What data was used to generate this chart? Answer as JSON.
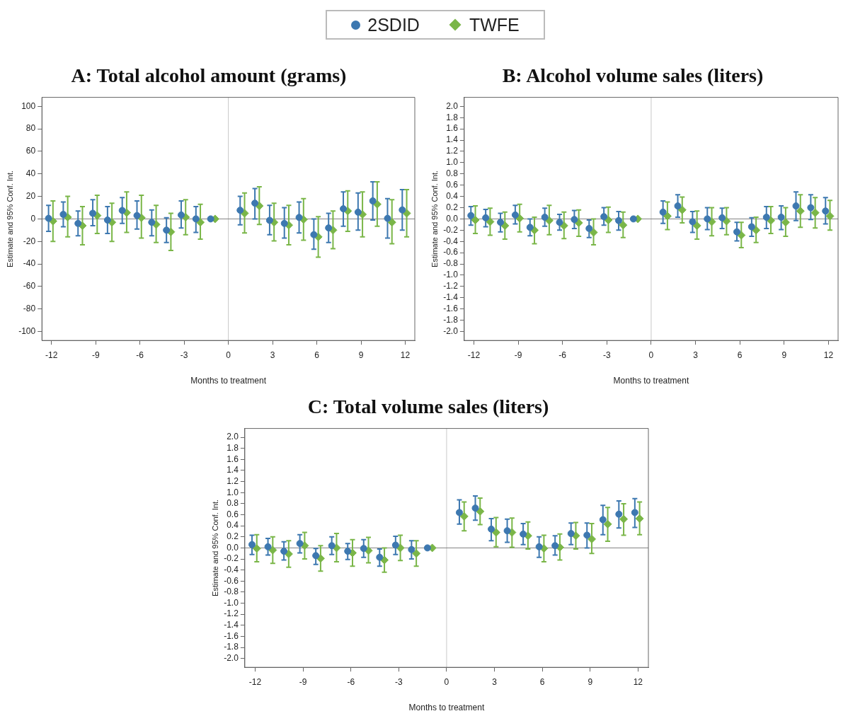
{
  "chart_data": [
    {
      "type": "scatter",
      "title": "A: Total alcohol amount (grams)",
      "xlabel": "Months to treatment",
      "ylabel": "Estimate and 95% Conf. Int.",
      "legend": "top",
      "grid": false,
      "xlim": [
        -12.65,
        12.65
      ],
      "xticks": [
        -12,
        -9,
        -6,
        -3,
        0,
        3,
        6,
        9,
        12
      ],
      "ylim": [
        -108,
        108
      ],
      "yticks": [
        -100,
        -80,
        -60,
        -40,
        -20,
        0,
        20,
        40,
        60,
        80,
        100
      ],
      "ref_lines": [
        {
          "axis": "x",
          "value": 0,
          "color": "#c8c8c8"
        },
        {
          "axis": "y",
          "value": 0,
          "color": "#808080"
        }
      ],
      "series": [
        {
          "name": "2SDID",
          "color": "#3d78b0",
          "marker": "circle",
          "x": [
            -12.2,
            -11.2,
            -10.2,
            -9.2,
            -8.2,
            -7.2,
            -6.2,
            -5.2,
            -4.2,
            -3.2,
            -2.2,
            -1.2,
            0.8,
            1.8,
            2.8,
            3.8,
            4.8,
            5.8,
            6.8,
            7.8,
            8.8,
            9.8,
            10.8,
            11.8
          ],
          "values": [
            0.5,
            4,
            -4,
            5,
            -1,
            7.5,
            3,
            -3,
            -10,
            3.5,
            0,
            0,
            7.7,
            14,
            -1.3,
            -4,
            1.3,
            -14,
            -8,
            9,
            6,
            16,
            0.5,
            8
          ],
          "errors": [
            [
              -11,
              12
            ],
            [
              -7,
              15
            ],
            [
              -15,
              7
            ],
            [
              -6,
              17
            ],
            [
              -13,
              11
            ],
            [
              -4,
              19
            ],
            [
              -9,
              16
            ],
            [
              -15,
              8
            ],
            [
              -21,
              1
            ],
            [
              -8,
              16
            ],
            [
              -12,
              11
            ],
            null,
            [
              -5.3,
              20
            ],
            [
              0,
              27
            ],
            [
              -14,
              12
            ],
            [
              -17,
              10
            ],
            [
              -12.5,
              15
            ],
            [
              -27,
              0
            ],
            [
              -21,
              5
            ],
            [
              -6.5,
              24
            ],
            [
              -10,
              23
            ],
            [
              -1,
              33
            ],
            [
              -17,
              18
            ],
            [
              -10,
              26
            ]
          ]
        },
        {
          "name": "TWFE",
          "color": "#7ab648",
          "marker": "diamond",
          "x": [
            -11.9,
            -10.9,
            -9.9,
            -8.9,
            -7.9,
            -6.9,
            -5.9,
            -4.9,
            -3.9,
            -2.9,
            -1.9,
            -0.9,
            1.1,
            2.1,
            3.1,
            4.1,
            5.1,
            6.1,
            7.1,
            8.1,
            9.1,
            10.1,
            11.1,
            12.1
          ],
          "values": [
            -2,
            1.5,
            -6,
            3,
            -3,
            5.5,
            1,
            -5,
            -11.5,
            1.5,
            -3,
            0,
            5,
            11.5,
            -3,
            -5.5,
            -0.5,
            -16,
            -10,
            7,
            4,
            13,
            -3,
            5
          ],
          "errors": [
            [
              -20,
              16
            ],
            [
              -16,
              20
            ],
            [
              -23,
              11
            ],
            [
              -13,
              21
            ],
            [
              -20,
              14
            ],
            [
              -12,
              24
            ],
            [
              -17,
              21
            ],
            [
              -21,
              12
            ],
            [
              -28,
              5
            ],
            [
              -14,
              17
            ],
            [
              -18,
              13
            ],
            null,
            [
              -12.5,
              23
            ],
            [
              -5,
              28.5
            ],
            [
              -19.5,
              14
            ],
            [
              -23,
              12
            ],
            [
              -19,
              18
            ],
            [
              -34,
              2
            ],
            [
              -26.5,
              7
            ],
            [
              -11,
              25
            ],
            [
              -16,
              24
            ],
            [
              -6.5,
              33
            ],
            [
              -22,
              17
            ],
            [
              -16,
              26
            ]
          ]
        }
      ]
    },
    {
      "type": "scatter",
      "title": "B: Alcohol volume sales (liters)",
      "xlabel": "Months to treatment",
      "ylabel": "Estimate and 95% Conf. Int.",
      "grid": false,
      "xlim": [
        -12.65,
        12.65
      ],
      "xticks": [
        -12,
        -9,
        -6,
        -3,
        0,
        3,
        6,
        9,
        12
      ],
      "ylim": [
        -2.16,
        2.16
      ],
      "yticks": [
        {
          "value": -2,
          "label": "-2.0"
        },
        -1.8,
        -1.6,
        -1.4,
        -1.2,
        {
          "value": -1,
          "label": "-1.0"
        },
        -0.8,
        -0.6,
        -0.4,
        -0.2,
        {
          "value": 0,
          "label": "0.0"
        },
        0.2,
        0.4,
        0.6,
        0.8,
        {
          "value": 1,
          "label": "1.0"
        },
        1.2,
        1.4,
        1.6,
        1.8,
        {
          "value": 2,
          "label": "2.0"
        }
      ],
      "ref_lines": [
        {
          "axis": "x",
          "value": 0,
          "color": "#c8c8c8"
        },
        {
          "axis": "y",
          "value": 0,
          "color": "#808080"
        }
      ],
      "series": [
        {
          "color": "#3d78b0",
          "marker": "circle",
          "x": [
            -12.2,
            -11.2,
            -10.2,
            -9.2,
            -8.2,
            -7.2,
            -6.2,
            -5.2,
            -4.2,
            -3.2,
            -2.2,
            -1.2,
            0.8,
            1.8,
            2.8,
            3.8,
            4.8,
            5.8,
            6.8,
            7.8,
            8.8,
            9.8,
            10.8,
            11.8
          ],
          "values": [
            0.06,
            0.02,
            -0.06,
            0.07,
            -0.15,
            0.03,
            -0.06,
            -0.01,
            -0.17,
            0.04,
            -0.03,
            0,
            0.12,
            0.23,
            -0.05,
            0,
            0.02,
            -0.23,
            -0.14,
            0.03,
            0.03,
            0.23,
            0.2,
            0.14
          ],
          "errors": [
            [
              -0.11,
              0.22
            ],
            [
              -0.14,
              0.17
            ],
            [
              -0.23,
              0.1
            ],
            [
              -0.09,
              0.24
            ],
            [
              -0.3,
              0
            ],
            [
              -0.13,
              0.19
            ],
            [
              -0.2,
              0.08
            ],
            [
              -0.17,
              0.15
            ],
            [
              -0.33,
              -0.02
            ],
            [
              -0.11,
              0.2
            ],
            [
              -0.2,
              0.13
            ],
            null,
            [
              -0.08,
              0.32
            ],
            [
              0.03,
              0.43
            ],
            [
              -0.24,
              0.13
            ],
            [
              -0.19,
              0.2
            ],
            [
              -0.17,
              0.19
            ],
            [
              -0.39,
              -0.06
            ],
            [
              -0.31,
              0.02
            ],
            [
              -0.17,
              0.22
            ],
            [
              -0.19,
              0.23
            ],
            [
              -0.03,
              0.48
            ],
            [
              -0.01,
              0.43
            ],
            [
              -0.09,
              0.38
            ]
          ]
        },
        {
          "color": "#7ab648",
          "marker": "diamond",
          "x": [
            -11.9,
            -10.9,
            -9.9,
            -8.9,
            -7.9,
            -6.9,
            -5.9,
            -4.9,
            -3.9,
            -2.9,
            -1.9,
            -0.9,
            1.1,
            2.1,
            3.1,
            4.1,
            5.1,
            6.1,
            7.1,
            8.1,
            9.1,
            10.1,
            11.1,
            12.1
          ],
          "values": [
            -0.02,
            -0.05,
            -0.12,
            0.01,
            -0.2,
            -0.03,
            -0.12,
            -0.07,
            -0.24,
            -0.02,
            -0.11,
            0,
            0.05,
            0.16,
            -0.12,
            -0.05,
            -0.04,
            -0.29,
            -0.2,
            -0.03,
            -0.06,
            0.14,
            0.11,
            0.05
          ],
          "errors": [
            [
              -0.26,
              0.23
            ],
            [
              -0.29,
              0.19
            ],
            [
              -0.36,
              0.12
            ],
            [
              -0.23,
              0.26
            ],
            [
              -0.44,
              0.03
            ],
            [
              -0.28,
              0.24
            ],
            [
              -0.35,
              0.12
            ],
            [
              -0.31,
              0.16
            ],
            [
              -0.46,
              0
            ],
            [
              -0.24,
              0.21
            ],
            [
              -0.33,
              0.12
            ],
            null,
            [
              -0.19,
              0.3
            ],
            [
              -0.07,
              0.39
            ],
            [
              -0.36,
              0.14
            ],
            [
              -0.3,
              0.2
            ],
            [
              -0.28,
              0.2
            ],
            [
              -0.51,
              -0.06
            ],
            [
              -0.42,
              0.03
            ],
            [
              -0.26,
              0.22
            ],
            [
              -0.31,
              0.2
            ],
            [
              -0.15,
              0.43
            ],
            [
              -0.16,
              0.38
            ],
            [
              -0.2,
              0.33
            ]
          ]
        }
      ]
    },
    {
      "type": "scatter",
      "title": "C: Total volume sales (liters)",
      "xlabel": "Months to treatment",
      "ylabel": "Estimate and 95% Conf. Int.",
      "grid": false,
      "xlim": [
        -12.65,
        12.65
      ],
      "xticks": [
        -12,
        -9,
        -6,
        -3,
        0,
        3,
        6,
        9,
        12
      ],
      "ylim": [
        -2.16,
        2.16
      ],
      "yticks": [
        {
          "value": -2,
          "label": "-2.0"
        },
        -1.8,
        -1.6,
        -1.4,
        -1.2,
        {
          "value": -1,
          "label": "-1.0"
        },
        -0.8,
        -0.6,
        -0.4,
        -0.2,
        {
          "value": 0,
          "label": "0.0"
        },
        0.2,
        0.4,
        0.6,
        0.8,
        {
          "value": 1,
          "label": "1.0"
        },
        1.2,
        1.4,
        1.6,
        1.8,
        {
          "value": 2,
          "label": "2.0"
        }
      ],
      "ref_lines": [
        {
          "axis": "x",
          "value": 0,
          "color": "#c8c8c8"
        },
        {
          "axis": "y",
          "value": 0,
          "color": "#808080"
        }
      ],
      "series": [
        {
          "color": "#3d78b0",
          "marker": "circle",
          "x": [
            -12.2,
            -11.2,
            -10.2,
            -9.2,
            -8.2,
            -7.2,
            -6.2,
            -5.2,
            -4.2,
            -3.2,
            -2.2,
            -1.2,
            0.8,
            1.8,
            2.8,
            3.8,
            4.8,
            5.8,
            6.8,
            7.8,
            8.8,
            9.8,
            10.8,
            11.8
          ],
          "values": [
            0.06,
            0.02,
            -0.06,
            0.08,
            -0.14,
            0.04,
            -0.06,
            -0.01,
            -0.17,
            0.05,
            -0.03,
            0,
            0.64,
            0.72,
            0.34,
            0.31,
            0.25,
            0.02,
            0.04,
            0.26,
            0.23,
            0.51,
            0.61,
            0.64
          ],
          "errors": [
            [
              -0.12,
              0.23
            ],
            [
              -0.13,
              0.17
            ],
            [
              -0.22,
              0.11
            ],
            [
              -0.09,
              0.24
            ],
            [
              -0.3,
              -0.01
            ],
            [
              -0.12,
              0.2
            ],
            [
              -0.21,
              0.08
            ],
            [
              -0.17,
              0.15
            ],
            [
              -0.33,
              -0.02
            ],
            [
              -0.12,
              0.21
            ],
            [
              -0.2,
              0.13
            ],
            null,
            [
              0.43,
              0.87
            ],
            [
              0.5,
              0.94
            ],
            [
              0.13,
              0.53
            ],
            [
              0.1,
              0.52
            ],
            [
              0.06,
              0.44
            ],
            [
              -0.17,
              0.2
            ],
            [
              -0.13,
              0.22
            ],
            [
              0.06,
              0.45
            ],
            [
              0,
              0.45
            ],
            [
              0.24,
              0.77
            ],
            [
              0.36,
              0.85
            ],
            [
              0.37,
              0.89
            ]
          ]
        },
        {
          "color": "#7ab648",
          "marker": "diamond",
          "x": [
            -11.9,
            -10.9,
            -9.9,
            -8.9,
            -7.9,
            -6.9,
            -5.9,
            -4.9,
            -3.9,
            -2.9,
            -1.9,
            -0.9,
            1.1,
            2.1,
            3.1,
            4.1,
            5.1,
            6.1,
            7.1,
            8.1,
            9.1,
            10.1,
            11.1,
            12.1
          ],
          "values": [
            -0.01,
            -0.04,
            -0.11,
            0.04,
            -0.19,
            0,
            -0.09,
            -0.05,
            -0.22,
            0,
            -0.1,
            0,
            0.57,
            0.66,
            0.28,
            0.28,
            0.22,
            -0.01,
            0.01,
            0.22,
            0.16,
            0.43,
            0.52,
            0.53
          ],
          "errors": [
            [
              -0.25,
              0.24
            ],
            [
              -0.28,
              0.2
            ],
            [
              -0.35,
              0.13
            ],
            [
              -0.2,
              0.28
            ],
            [
              -0.42,
              0.04
            ],
            [
              -0.25,
              0.26
            ],
            [
              -0.33,
              0.15
            ],
            [
              -0.27,
              0.19
            ],
            [
              -0.44,
              0
            ],
            [
              -0.23,
              0.23
            ],
            [
              -0.33,
              0.13
            ],
            null,
            [
              0.31,
              0.83
            ],
            [
              0.42,
              0.9
            ],
            [
              0.02,
              0.55
            ],
            [
              0.01,
              0.54
            ],
            [
              -0.02,
              0.47
            ],
            [
              -0.25,
              0.23
            ],
            [
              -0.22,
              0.25
            ],
            [
              -0.02,
              0.46
            ],
            [
              -0.1,
              0.44
            ],
            [
              0.12,
              0.73
            ],
            [
              0.23,
              0.8
            ],
            [
              0.24,
              0.83
            ]
          ]
        }
      ]
    }
  ]
}
